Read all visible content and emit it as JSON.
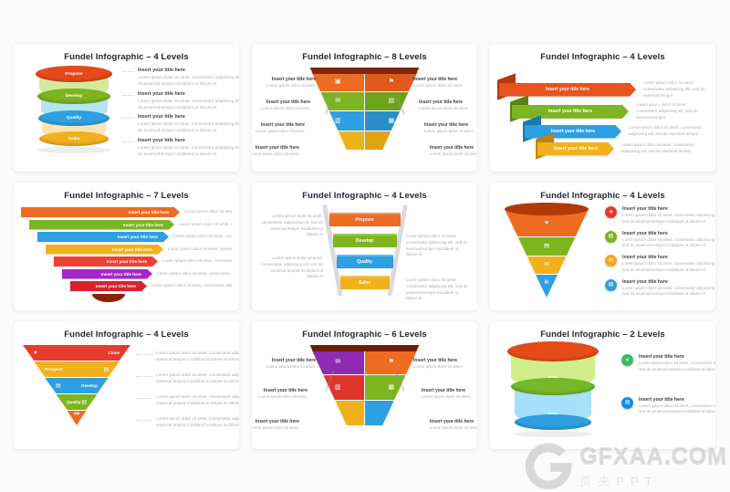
{
  "watermark": {
    "site": "GFXAA.COM",
    "caption": "页夹PPT",
    "logo_letter": "G"
  },
  "slides": [
    {
      "title": "Fundel Infographic – 4 Levels",
      "type": "cylinder-stack",
      "levels": [
        {
          "label": "Propose",
          "lid": "#e64a19",
          "body": "#c7e584"
        },
        {
          "label": "Develop",
          "lid": "#7cb520",
          "body": "#a6dcf0"
        },
        {
          "label": "Quality",
          "lid": "#2e9fe0",
          "body": "#f7dd9b"
        },
        {
          "label": "Sales",
          "lid": "#f2b11c",
          "body": null
        }
      ],
      "texts": [
        {
          "title": "Insert your title here",
          "body": "Lorem ipsum dolor sit amet, consectetur adipiscing elit, sed do eiusmod tempor incididunt ut labore et"
        },
        {
          "title": "Insert your title here",
          "body": "Lorem ipsum dolor sit amet, consectetur adipiscing elit, sed do eiusmod tempor incididunt ut labore et"
        },
        {
          "title": "Insert your title here",
          "body": "Lorem ipsum dolor sit amet, consectetur adipiscing elit, sed do eiusmod tempor incididunt ut labore et"
        },
        {
          "title": "Insert your title here",
          "body": "Lorem ipsum dolor sit amet, consectetur adipiscing elit, sed do eiusmod tempor incididunt ut labore et"
        }
      ]
    },
    {
      "title": "Fundel Infographic – 8 Levels",
      "type": "split-funnel",
      "rim": "#7e2605",
      "side_labels": {
        "left": "Lorem Ipsum",
        "right": "Lorem Ipsum"
      },
      "rows": [
        {
          "left": {
            "color": "#ee6b23",
            "icon": "camera-icon",
            "glyph": "▣"
          },
          "right": {
            "color": "#df5a1b",
            "icon": "flag-icon",
            "glyph": "⚑"
          }
        },
        {
          "left": {
            "color": "#7cb520",
            "icon": "mail-icon",
            "glyph": "✉"
          },
          "right": {
            "color": "#6ca31d",
            "icon": "document-icon",
            "glyph": "▤"
          }
        },
        {
          "left": {
            "color": "#2e9fe0",
            "icon": "users-icon",
            "glyph": "▥"
          },
          "right": {
            "color": "#2a8fc9",
            "icon": "book-icon",
            "glyph": "▦"
          }
        },
        {
          "left": {
            "color": "#f2b11c",
            "icon": "chart-icon",
            "glyph": "▧"
          },
          "right": {
            "color": "#e3a112",
            "icon": "chevron-down-icon",
            "glyph": "▼"
          }
        }
      ],
      "left_texts": [
        {
          "title": "Insert your title here",
          "body": "Lorem ipsum dolor sit amet,"
        },
        {
          "title": "Insert your title here",
          "body": "Lorem ipsum dolor sit amet,"
        },
        {
          "title": "Insert your title here",
          "body": "Lorem ipsum dolor sit amet,"
        },
        {
          "title": "Insert your title here",
          "body": "Lorem ipsum dolor sit amet,"
        }
      ],
      "right_texts": [
        {
          "title": "Insert your title here",
          "body": "Lorem ipsum dolor sit amet,"
        },
        {
          "title": "Insert your title here",
          "body": "Lorem ipsum dolor sit amet,"
        },
        {
          "title": "Insert your title here",
          "body": "Lorem ipsum dolor sit amet,"
        },
        {
          "title": "Insert your title here",
          "body": "Lorem ipsum dolor sit amet,"
        }
      ]
    },
    {
      "title": "Fundel Infographic – 4 Levels",
      "type": "chevron-arrows",
      "levels": [
        {
          "label": "Insert your title here",
          "note": "Lorem ipsum dolor sit amet, consectetur adipiscing elit, sed do eiusmod tempor",
          "color": "#e8531f",
          "fold": "#b03a10"
        },
        {
          "label": "Insert your title here",
          "note": "Lorem ipsum dolor sit amet, consectetur adipiscing elit, sed do eiusmod tempor",
          "color": "#7cb520",
          "fold": "#578416"
        },
        {
          "label": "Insert your title here",
          "note": "Lorem ipsum dolor sit amet, consectetur adipiscing elit, sed do eiusmod tempor",
          "color": "#2e9fe0",
          "fold": "#1f76ad"
        },
        {
          "label": "Insert your title here",
          "note": "Lorem ipsum dolor sit amet, consectetur adipiscing elit, sed do eiusmod tempor",
          "color": "#f2b11c",
          "fold": "#bb8410"
        }
      ]
    },
    {
      "title": "Fundel Infographic – 7 Levels",
      "type": "banner-bars",
      "spout": "#8c2106",
      "levels": [
        {
          "label": "Insert your title here",
          "note": "Lorem ipsum dolor sit amet, consectetur adipiscing elit",
          "color": "#ee6b23"
        },
        {
          "label": "Insert your title here",
          "note": "Lorem ipsum dolor sit amet, consectetur adipiscing elit",
          "color": "#7cb520"
        },
        {
          "label": "Insert your title here",
          "note": "Lorem ipsum dolor sit amet, consectetur adipiscing elit",
          "color": "#2e9fe0"
        },
        {
          "label": "Insert your title here",
          "note": "Lorem ipsum dolor sit amet, consectetur adipiscing elit",
          "color": "#f2b11c"
        },
        {
          "label": "Insert your title here",
          "note": "Lorem ipsum dolor sit amet, consectetur adipiscing elit",
          "color": "#ef4036"
        },
        {
          "label": "Insert your title here",
          "note": "Lorem ipsum dolor sit amet, consectetur adipiscing elit",
          "color": "#a327c9"
        },
        {
          "label": "Insert your title here",
          "note": "Lorem ipsum dolor sit amet, consectetur adipiscing elit",
          "color": "#d8232e"
        }
      ]
    },
    {
      "title": "Fundel Infographic – 4 Levels",
      "type": "rail-funnel",
      "rail": "#d9dadc",
      "levels": [
        {
          "label": "Propose",
          "color": "#ee6b23"
        },
        {
          "label": "Develop",
          "color": "#7cb520"
        },
        {
          "label": "Quality",
          "color": "#2e9fe0"
        },
        {
          "label": "Sales",
          "color": "#f2b11c"
        }
      ],
      "texts": [
        "Lorem ipsum dolor sit amet, consectetur adipiscing elit, sed do eiusmod tempor incididunt ut labore et",
        "Lorem ipsum dolor sit amet, consectetur adipiscing elit, sed do eiusmod tempor incididunt ut labore et",
        "Lorem ipsum dolor sit amet, consectetur adipiscing elit, sed do eiusmod tempor incididunt ut labore et",
        "Lorem ipsum dolor sit amet, consectetur adipiscing elit, sed do eiusmod tempor incididunt ut labore et"
      ]
    },
    {
      "title": "Fundel Infographic – 4 Levels",
      "type": "cone-funnel",
      "top": "#b23908",
      "levels": [
        {
          "color": "#ee6b23",
          "icon": "heart-icon",
          "glyph": "♥"
        },
        {
          "color": "#7cb520",
          "icon": "document-icon",
          "glyph": "▤"
        },
        {
          "color": "#f2b11c",
          "icon": "mail-icon",
          "glyph": "✉"
        },
        {
          "color": "#2e9fe0",
          "icon": "file-icon",
          "glyph": "▤"
        }
      ],
      "items": [
        {
          "color": "#e63c2d",
          "icon": "heart-icon",
          "glyph": "♥",
          "title": "Insert your title here",
          "body": "Lorem ipsum dolor sit amet, consectetur adipiscing elit, sed do eiusmod tempor incididunt ut labore et"
        },
        {
          "color": "#7cb520",
          "icon": "document-icon",
          "glyph": "▤",
          "title": "Insert your title here",
          "body": "Lorem ipsum dolor sit amet, consectetur adipiscing elit, sed do eiusmod tempor incididunt ut labore et"
        },
        {
          "color": "#f2a71c",
          "icon": "mail-icon",
          "glyph": "✉",
          "title": "Insert your title here",
          "body": "Lorem ipsum dolor sit amet, consectetur adipiscing elit, sed do eiusmod tempor incididunt ut labore et"
        },
        {
          "color": "#2e9fe0",
          "icon": "file-icon",
          "glyph": "▤",
          "title": "Insert your title here",
          "body": "Lorem ipsum dolor sit amet, consectetur adipiscing elit, sed do eiusmod tempor incididunt ut labore et"
        }
      ]
    },
    {
      "title": "Fundel Infographic – 4 Levels",
      "type": "pyramid",
      "tip": {
        "color": "#ee6b23",
        "label": "$$$"
      },
      "levels": [
        {
          "color": "#e63c2d",
          "label": "Close",
          "icon": "heart-icon",
          "glyph": "♥",
          "icon_side": "left"
        },
        {
          "color": "#f2b11c",
          "label": "Prospect",
          "icon": "document-icon",
          "glyph": "▤",
          "icon_side": "right"
        },
        {
          "color": "#2e9fe0",
          "label": "Develop",
          "icon": "file-icon",
          "glyph": "▤",
          "icon_side": "left"
        },
        {
          "color": "#7cb520",
          "label": "Quality",
          "icon": "clipboard-icon",
          "glyph": "▤",
          "icon_side": "right"
        }
      ],
      "texts": [
        "Lorem ipsum dolor sit amet, consectetur adipiscing elit, sed do eiusmod tempor incididunt ut labore et dolore magna aliqua.",
        "Lorem ipsum dolor sit amet, consectetur adipiscing elit, sed do eiusmod tempor incididunt ut labore et dolore magna aliqua.",
        "Lorem ipsum dolor sit amet, consectetur adipiscing elit, sed do eiusmod tempor incididunt ut labore et dolore magna aliqua.",
        "Lorem ipsum dolor sit amet, consectetur adipiscing elit, sed do eiusmod tempor incididunt ut labore et dolore magna aliqua."
      ]
    },
    {
      "title": "Fundel Infographic – 6 Levels",
      "type": "split-funnel",
      "rim": "#6b1d03",
      "side_labels": {
        "left": "Lorem Ipsum",
        "right": "Lorem Ipsum"
      },
      "rows": [
        {
          "left": {
            "color": "#8e2bb0",
            "icon": "share-icon",
            "glyph": "✉"
          },
          "right": {
            "color": "#ee6b23",
            "icon": "flag-icon",
            "glyph": "⚑"
          }
        },
        {
          "left": {
            "color": "#e0342b",
            "icon": "users-icon",
            "glyph": "▥"
          },
          "right": {
            "color": "#7cb520",
            "icon": "list-icon",
            "glyph": "▦"
          }
        },
        {
          "left": {
            "color": "#f2b11c",
            "icon": "chart-icon",
            "glyph": "▧"
          },
          "right": {
            "color": "#2e9fe0",
            "icon": "chevron-down-icon",
            "glyph": "▼"
          }
        }
      ],
      "left_texts": [
        {
          "title": "Insert your title here",
          "body": "Lorem ipsum dolor sit amet,"
        },
        {
          "title": "Insert your title here",
          "body": "Lorem ipsum dolor sit amet,"
        },
        {
          "title": "Insert your title here",
          "body": "Lorem ipsum dolor sit amet,"
        }
      ],
      "right_texts": [
        {
          "title": "Insert your title here",
          "body": "Lorem ipsum dolor sit amet,"
        },
        {
          "title": "Insert your title here",
          "body": "Lorem ipsum dolor sit amet,"
        },
        {
          "title": "Insert your title here",
          "body": "Lorem ipsum dolor sit amet,"
        }
      ]
    },
    {
      "title": "Fundel Infographic – 2 Levels",
      "type": "cylinder-2",
      "top": "#e64a19",
      "levels": [
        {
          "pct": "80%",
          "body": "#c4ea6e",
          "base": "#76b82a"
        },
        {
          "pct": "60%",
          "body": "#8ed9f8",
          "base": "#2e9fe0"
        }
      ],
      "items": [
        {
          "color": "#3dba63",
          "icon": "heart-icon",
          "glyph": "♥",
          "title": "Insert your title here",
          "body": "Lorem ipsum dolor sit amet, consectetur adipiscing elit, sed do eiusmod tempor incididunt ut labore et"
        },
        {
          "color": "#1e88e5",
          "icon": "document-icon",
          "glyph": "▤",
          "title": "Insert your title here",
          "body": "Lorem ipsum dolor sit amet, consectetur adipiscing elit, sed do eiusmod tempor incididunt ut labore et"
        }
      ]
    }
  ]
}
